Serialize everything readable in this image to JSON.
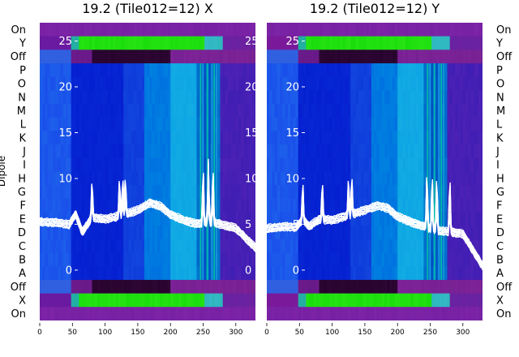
{
  "chart_data": {
    "type": "heatmap",
    "ylabel": "Dipole",
    "dipole_rows_top_to_bottom": [
      "On",
      "Y",
      "Off",
      "P",
      "O",
      "N",
      "M",
      "L",
      "K",
      "J",
      "I",
      "H",
      "G",
      "F",
      "E",
      "D",
      "C",
      "B",
      "A",
      "Off",
      "X",
      "On"
    ],
    "xlim": [
      0,
      330
    ],
    "xticks": [
      0,
      50,
      100,
      150,
      200,
      250,
      300
    ],
    "overlay_ylim": [
      -5.5,
      27
    ],
    "overlay_yticks": [
      0,
      5,
      10,
      15,
      20,
      25
    ],
    "panels": [
      {
        "title": "19.2 (Tile012=12) X",
        "side": "left",
        "bright_row_groups": [
          "Y-top",
          "X-bottom"
        ],
        "dark_row_groups": [
          "Y-off",
          "X-off"
        ],
        "spike_x": [
          80,
          122,
          127,
          131,
          250,
          258,
          265
        ],
        "curve_samples_x": [
          0,
          30,
          45,
          55,
          65,
          80,
          100,
          125,
          150,
          170,
          185,
          200,
          220,
          240,
          260,
          280,
          300,
          330
        ],
        "curve_samples_y": [
          5.3,
          5.2,
          5.0,
          6.2,
          4.2,
          5.8,
          5.6,
          6.0,
          6.6,
          7.4,
          7.0,
          6.1,
          5.5,
          5.1,
          5.3,
          5.0,
          4.6,
          2.5
        ]
      },
      {
        "title": "19.2 (Tile012=12) Y",
        "side": "right",
        "bright_row_groups": [
          "Y-top",
          "X-bottom"
        ],
        "dark_row_groups": [
          "Y-off",
          "X-off"
        ],
        "spike_x": [
          55,
          85,
          125,
          130,
          245,
          253,
          260,
          280
        ],
        "curve_samples_x": [
          0,
          30,
          45,
          55,
          65,
          80,
          100,
          125,
          150,
          170,
          185,
          200,
          220,
          240,
          260,
          280,
          300,
          330
        ],
        "curve_samples_y": [
          4.6,
          4.8,
          4.7,
          5.6,
          4.8,
          5.6,
          5.5,
          6.0,
          6.6,
          7.1,
          6.8,
          5.9,
          5.3,
          4.8,
          4.4,
          4.2,
          4.0,
          0.5
        ]
      }
    ]
  },
  "colors": {
    "purple": "#7a1a9a",
    "dark_purple": "#2a0030",
    "blue": "#0a20d0",
    "cyan": "#00b0d8",
    "green": "#00e000",
    "curve": "#ffffff"
  }
}
